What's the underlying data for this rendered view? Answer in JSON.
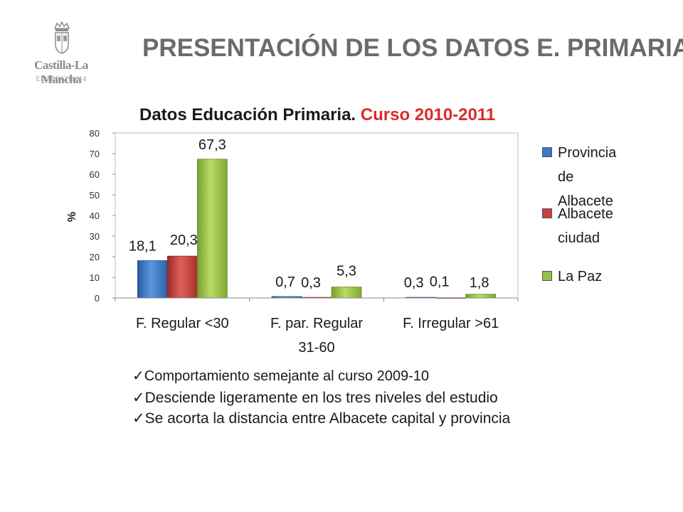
{
  "logo": {
    "name": "Castilla-La Mancha",
    "sub": "ELGRECO2014"
  },
  "header": {
    "title": "PRESENTACIÓN DE LOS DATOS E. PRIMARIA"
  },
  "chart_title": {
    "main": "Datos  Educación Primaria.",
    "accent": "Curso 2010-2011"
  },
  "colors": {
    "provincia": "#3b78c7",
    "albacete": "#c8403c",
    "lapaz": "#9ac046",
    "title_accent": "#d92b2b"
  },
  "chart_data": {
    "type": "bar",
    "title": "Datos  Educación Primaria. Curso 2010-2011",
    "ylabel": "%",
    "ylim": [
      0,
      80
    ],
    "yticks": [
      0,
      10,
      20,
      30,
      40,
      50,
      60,
      70,
      80
    ],
    "grid": false,
    "legend_position": "right",
    "categories": [
      "F. Regular <30",
      "F. par. Regular 31-60",
      "F. Irregular >61"
    ],
    "series": [
      {
        "name": "Provincia de Albacete",
        "values": [
          18.1,
          0.7,
          0.3
        ],
        "labels": [
          "18,1",
          "0,7",
          "0,3"
        ]
      },
      {
        "name": "Albacete ciudad",
        "values": [
          20.3,
          0.3,
          0.1
        ],
        "labels": [
          "20,3",
          "0,3",
          "0,1"
        ]
      },
      {
        "name": "La Paz",
        "values": [
          67.3,
          5.3,
          1.8
        ],
        "labels": [
          "67,3",
          "5,3",
          "1,8"
        ]
      }
    ]
  },
  "legend": {
    "provincia": "Provincia de Albacete",
    "albacete": "Albacete ciudad",
    "lapaz": "La Paz"
  },
  "bullets": [
    "Comportamiento semejante al curso 2009-10",
    "Desciende ligeramente en los tres niveles del estudio",
    "Se acorta la distancia entre Albacete capital y provincia"
  ]
}
